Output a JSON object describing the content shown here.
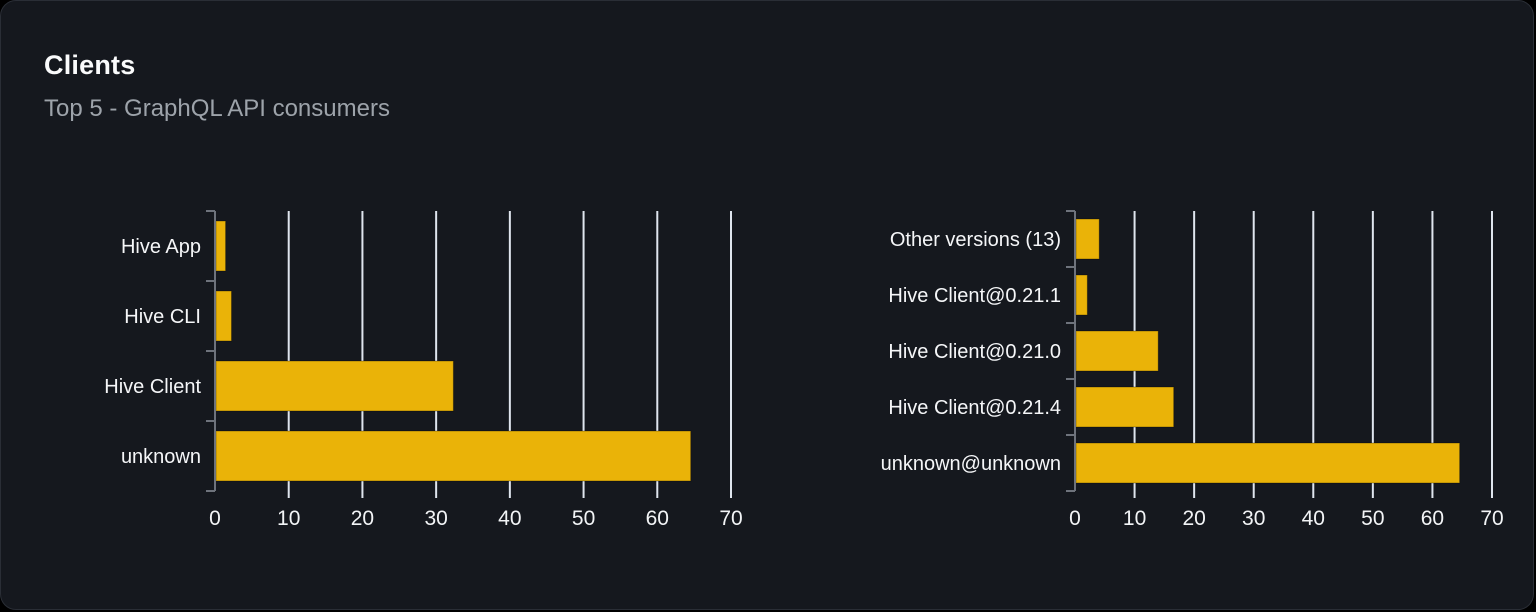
{
  "header": {
    "title": "Clients",
    "subtitle": "Top 5 - GraphQL API consumers"
  },
  "colors": {
    "bar": "#eab308",
    "grid": "#dfe5ee",
    "axis": "#6e737c",
    "label": "#f5f6f8",
    "tick_label": "#f2f4f6",
    "subtitle": "#9da3aa",
    "card_background": "#15181e",
    "page_background": "#000000"
  },
  "chart_data": [
    {
      "type": "bar",
      "orientation": "horizontal",
      "categories": [
        "Hive App",
        "Hive CLI",
        "Hive Client",
        "unknown"
      ],
      "values": [
        1.3,
        2.1,
        32.2,
        64.4
      ],
      "xticks": [
        0,
        10,
        20,
        30,
        40,
        50,
        60,
        70
      ],
      "xlim": [
        0,
        70
      ],
      "grid": true,
      "legend": false,
      "bar_color": "#eab308"
    },
    {
      "type": "bar",
      "orientation": "horizontal",
      "categories": [
        "Other versions (13)",
        "Hive Client@0.21.1",
        "Hive Client@0.21.0",
        "Hive Client@0.21.4",
        "unknown@unknown"
      ],
      "values": [
        3.9,
        1.9,
        13.8,
        16.4,
        64.4
      ],
      "xticks": [
        0,
        10,
        20,
        30,
        40,
        50,
        60,
        70
      ],
      "xlim": [
        0,
        70
      ],
      "grid": true,
      "legend": false,
      "bar_color": "#eab308"
    }
  ]
}
